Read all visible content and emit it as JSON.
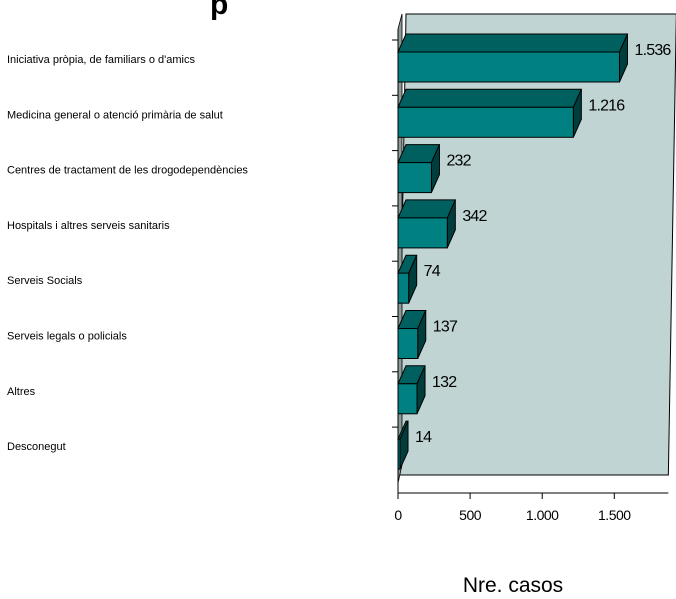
{
  "chart_data": {
    "type": "bar",
    "orientation": "horizontal",
    "style": "3d",
    "title": "",
    "categories": [
      "Iniciativa pròpia, de familiars o d'amics",
      "Medicina general o atenció primària de salut",
      "Centres de tractament de les drogodependències",
      "Hospitals i altres serveis sanitaris",
      "Serveis  Socials",
      "Serveis legals o policials",
      "Altres",
      "Desconegut"
    ],
    "values": [
      1536,
      1216,
      232,
      342,
      74,
      137,
      132,
      14
    ],
    "value_labels": [
      "1.536",
      "1.216",
      "232",
      "342",
      "74",
      "137",
      "132",
      "14"
    ],
    "xlabel": "Nre. casos",
    "xlim": [
      0,
      1750
    ],
    "xticks": [
      0,
      500,
      1000,
      1500
    ],
    "xtick_labels": [
      "0",
      "500",
      "1.000",
      "1.500"
    ],
    "grid": false,
    "colors": {
      "bar_front": "#008080",
      "bar_top": "#00605f",
      "bar_side": "#003d3d",
      "plot_back": "#c0d4d4",
      "plot_wall": "#8c9a9a",
      "title_fragment": "p"
    }
  }
}
